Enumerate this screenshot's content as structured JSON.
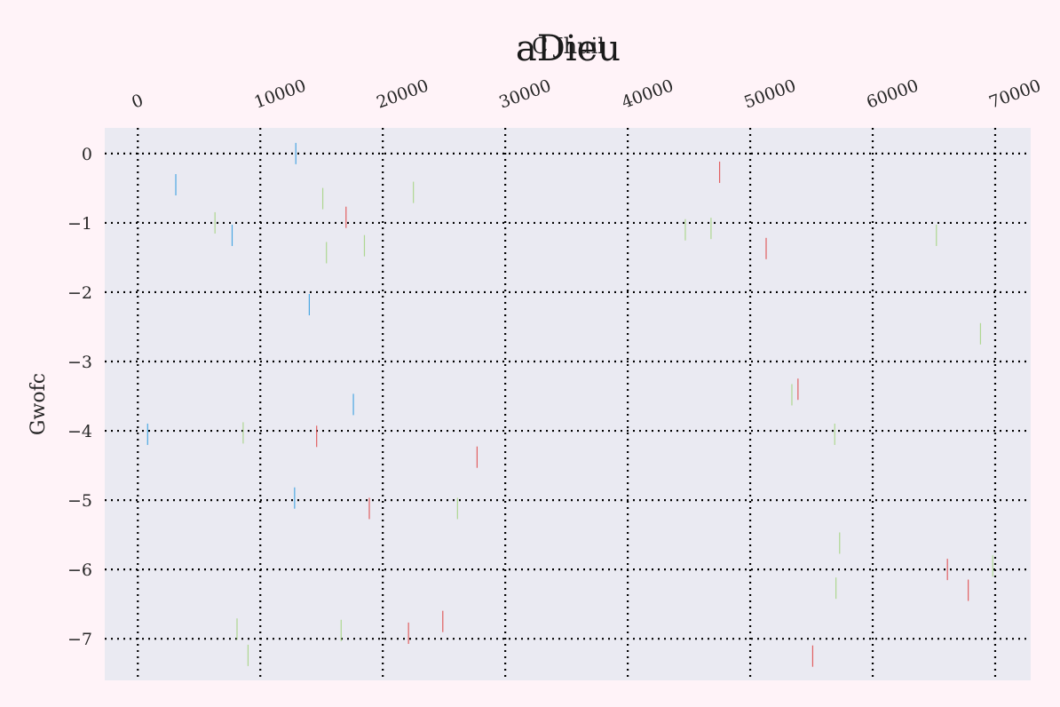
{
  "chart_data": {
    "type": "scatter",
    "title": "aDieu",
    "xlabel": "C Jhuil",
    "ylabel": "Gwofc",
    "xlim": [
      -2700,
      72900
    ],
    "ylim": [
      -7.6,
      0.37
    ],
    "xticks": [
      0,
      10000,
      20000,
      30000,
      40000,
      50000,
      60000,
      70000
    ],
    "yticks": [
      0,
      -1,
      -2,
      -3,
      -4,
      -5,
      -6,
      -7
    ],
    "x_axis_position": "top",
    "grid": true,
    "grid_style": "dotted",
    "legend": "none",
    "marker": "vertical-line",
    "colors": {
      "background": "#fff3f8",
      "plot_area": "#eaeaf2",
      "grid": "#000000",
      "series": [
        "#3aa0e0",
        "#e05050",
        "#9ad070"
      ]
    },
    "series": [
      {
        "points": [
          {
            "x": 800,
            "y": -4.05
          },
          {
            "x": 3100,
            "y": -0.45
          },
          {
            "x": 7700,
            "y": -1.18
          },
          {
            "x": 12900,
            "y": 0.0
          },
          {
            "x": 14000,
            "y": -2.18
          },
          {
            "x": 12800,
            "y": -4.97
          },
          {
            "x": 17600,
            "y": -3.62
          }
        ]
      },
      {
        "points": [
          {
            "x": 17000,
            "y": -0.92
          },
          {
            "x": 14600,
            "y": -4.08
          },
          {
            "x": 18900,
            "y": -5.12
          },
          {
            "x": 22100,
            "y": -6.92
          },
          {
            "x": 24900,
            "y": -6.75
          },
          {
            "x": 27700,
            "y": -4.38
          },
          {
            "x": 47500,
            "y": -0.27
          },
          {
            "x": 51300,
            "y": -1.37
          },
          {
            "x": 53900,
            "y": -3.4
          },
          {
            "x": 55100,
            "y": -7.25
          },
          {
            "x": 66100,
            "y": -6.0
          },
          {
            "x": 67800,
            "y": -6.3
          }
        ]
      },
      {
        "points": [
          {
            "x": 6300,
            "y": -1.0
          },
          {
            "x": 15100,
            "y": -0.65
          },
          {
            "x": 15400,
            "y": -1.43
          },
          {
            "x": 18500,
            "y": -1.33
          },
          {
            "x": 22500,
            "y": -0.56
          },
          {
            "x": 8600,
            "y": -4.03
          },
          {
            "x": 8100,
            "y": -6.86
          },
          {
            "x": 9000,
            "y": -7.24
          },
          {
            "x": 16600,
            "y": -6.88
          },
          {
            "x": 26100,
            "y": -5.12
          },
          {
            "x": 44700,
            "y": -1.1
          },
          {
            "x": 46800,
            "y": -1.08
          },
          {
            "x": 53400,
            "y": -3.48
          },
          {
            "x": 56900,
            "y": -4.05
          },
          {
            "x": 57300,
            "y": -5.62
          },
          {
            "x": 57000,
            "y": -6.27
          },
          {
            "x": 65200,
            "y": -1.18
          },
          {
            "x": 68800,
            "y": -2.6
          },
          {
            "x": 69800,
            "y": -5.95
          }
        ]
      }
    ]
  }
}
